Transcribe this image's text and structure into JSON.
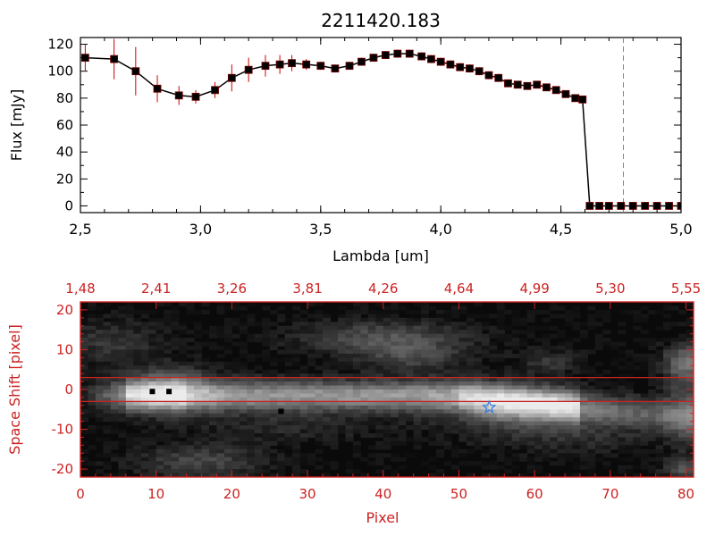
{
  "chart_data": [
    {
      "type": "line",
      "title": "2211420.183",
      "xlabel": "Lambda [um]",
      "ylabel": "Flux [mJy]",
      "xlim": [
        2.5,
        5.0
      ],
      "ylim": [
        -5,
        125
      ],
      "x_ticks": [
        2.5,
        3.0,
        3.5,
        4.0,
        4.5,
        5.0
      ],
      "x_tick_labels": [
        "2,5",
        "3,0",
        "3,5",
        "4,0",
        "4,5",
        "5,0"
      ],
      "y_ticks": [
        0,
        20,
        40,
        60,
        80,
        100,
        120
      ],
      "y_tick_labels": [
        "0",
        "20",
        "40",
        "60",
        "80",
        "100",
        "120"
      ],
      "colors": {
        "line": "#000000",
        "marker": "#000000",
        "error": "#cc0000",
        "cutoff": "#3a9ad9"
      },
      "cutoff_x": 4.76,
      "series": [
        {
          "x": [
            2.52,
            2.64,
            2.73,
            2.82,
            2.91,
            2.98,
            3.06,
            3.13,
            3.2,
            3.27,
            3.33,
            3.38,
            3.44,
            3.5,
            3.56,
            3.62,
            3.67,
            3.72,
            3.77,
            3.82,
            3.87,
            3.92,
            3.96,
            4.0,
            4.04,
            4.08,
            4.12,
            4.16,
            4.2,
            4.24,
            4.28,
            4.32,
            4.36,
            4.4,
            4.44,
            4.48,
            4.52,
            4.56,
            4.59,
            4.62,
            4.66,
            4.7,
            4.75,
            4.8,
            4.85,
            4.9,
            4.95,
            5.0
          ],
          "y": [
            110,
            109,
            100,
            87,
            82,
            81,
            86,
            95,
            101,
            104,
            105,
            106,
            105,
            104,
            102,
            104,
            107,
            110,
            112,
            113,
            113,
            111,
            109,
            107,
            105,
            103,
            102,
            100,
            97,
            95,
            91,
            90,
            89,
            90,
            88,
            86,
            83,
            80,
            79,
            0,
            0,
            0,
            0,
            0,
            0,
            0,
            0,
            0
          ],
          "yerr": [
            10,
            15,
            18,
            10,
            7,
            5,
            6,
            10,
            9,
            8,
            7,
            6,
            4,
            3,
            3,
            3,
            3,
            3,
            3,
            3,
            3,
            3,
            3,
            3,
            3,
            3,
            3,
            3,
            3,
            3,
            2,
            2,
            2,
            2,
            2,
            2,
            2,
            2,
            2,
            0,
            0,
            0,
            0,
            0,
            0,
            0,
            0,
            0
          ]
        }
      ]
    },
    {
      "type": "heatmap",
      "xlabel": "Pixel",
      "ylabel": "Space Shift [pixel]",
      "xlim": [
        0,
        81
      ],
      "ylim": [
        -22,
        22
      ],
      "x_ticks": [
        0,
        10,
        20,
        30,
        40,
        50,
        60,
        70,
        80
      ],
      "x_tick_labels": [
        "0",
        "10",
        "20",
        "30",
        "40",
        "50",
        "60",
        "70",
        "80"
      ],
      "y_ticks": [
        -20,
        -10,
        0,
        10,
        20
      ],
      "y_tick_labels": [
        "-20",
        "-10",
        "0",
        "10",
        "20"
      ],
      "top_x_ticks": [
        0,
        10,
        20,
        30,
        40,
        50,
        60,
        70,
        80
      ],
      "top_tick_labels": [
        "1,48",
        "2,41",
        "3,26",
        "3,81",
        "4,26",
        "4,64",
        "4,99",
        "5,30",
        "5,55"
      ],
      "hlines": [
        3,
        -3
      ],
      "marker": {
        "x": 54,
        "y": -4.5,
        "symbol": "star",
        "color": "#3a7fd9"
      },
      "colors": {
        "frame": "#cc2222",
        "text": "#cc2222",
        "hline": "#cc2222"
      },
      "colormap": "gray"
    }
  ]
}
